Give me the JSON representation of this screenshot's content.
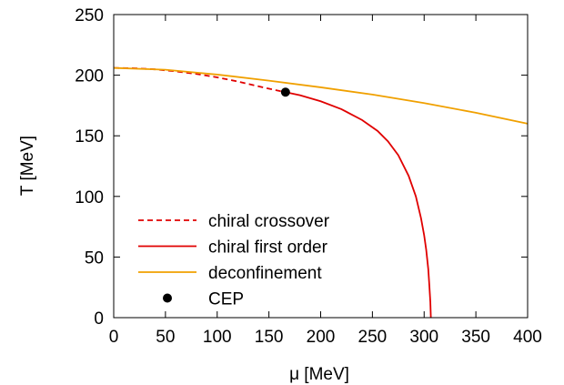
{
  "chart_data": {
    "type": "line",
    "xlabel": "μ [MeV]",
    "ylabel": "T [MeV]",
    "xlim": [
      0,
      400
    ],
    "ylim": [
      0,
      250
    ],
    "x_ticks": [
      0,
      50,
      100,
      150,
      200,
      250,
      300,
      350,
      400
    ],
    "y_ticks": [
      0,
      50,
      100,
      150,
      200,
      250
    ],
    "grid": false,
    "legend_position": "bottom-left",
    "series": [
      {
        "name": "chiral crossover",
        "style": "dashed",
        "color": "#e00000",
        "x": [
          0,
          20,
          40,
          60,
          80,
          100,
          120,
          140,
          155,
          166
        ],
        "y": [
          206,
          205.7,
          204.8,
          203.2,
          201,
          198.2,
          194.8,
          190.8,
          187.9,
          186
        ]
      },
      {
        "name": "chiral first order",
        "style": "solid",
        "color": "#e00000",
        "x": [
          166,
          180,
          200,
          220,
          240,
          255,
          265,
          275,
          285,
          292,
          297,
          300,
          302,
          304,
          305,
          306,
          306.5
        ],
        "y": [
          186,
          183.5,
          178.5,
          172,
          163,
          154,
          145.5,
          134,
          117,
          100,
          82,
          68,
          56,
          40,
          27,
          13,
          0
        ]
      },
      {
        "name": "deconfinement",
        "style": "solid",
        "color": "#f0a000",
        "x": [
          0,
          50,
          100,
          150,
          200,
          250,
          300,
          350,
          400
        ],
        "y": [
          206,
          204.5,
          200.5,
          195.5,
          190,
          184,
          177,
          169,
          160
        ]
      },
      {
        "name": "CEP",
        "style": "point",
        "color": "#000000",
        "x": [
          166
        ],
        "y": [
          186
        ]
      }
    ]
  }
}
